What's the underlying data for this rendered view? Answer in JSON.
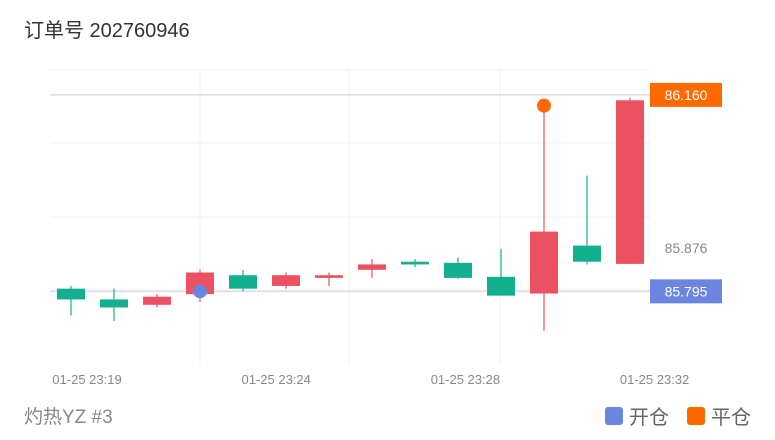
{
  "header": {
    "title": "订单号 202760946"
  },
  "footer": {
    "subtitle": "灼热YZ #3"
  },
  "legend": {
    "items": [
      {
        "label": "开仓",
        "color": "#6b85e0"
      },
      {
        "label": "平仓",
        "color": "#ff6a00"
      }
    ]
  },
  "colors": {
    "up": "#13b08f",
    "down": "#eb5160",
    "grid": "#f2f2f2",
    "ref_line": "#dddddd"
  },
  "chart_data": {
    "type": "candlestick",
    "ylim": [
      85.66,
      86.21
    ],
    "x_tick_labels": [
      {
        "index": 0,
        "label": "01-25 23:19"
      },
      {
        "index": 4.4,
        "label": "01-25 23:24"
      },
      {
        "index": 8.8,
        "label": "01-25 23:28"
      },
      {
        "index": 13.2,
        "label": "01-25 23:32"
      }
    ],
    "candles": [
      {
        "open": 85.78,
        "close": 85.8,
        "high": 85.805,
        "low": 85.75
      },
      {
        "open": 85.765,
        "close": 85.78,
        "high": 85.8,
        "low": 85.74
      },
      {
        "open": 85.785,
        "close": 85.77,
        "high": 85.79,
        "low": 85.765
      },
      {
        "open": 85.83,
        "close": 85.79,
        "high": 85.835,
        "low": 85.775
      },
      {
        "open": 85.8,
        "close": 85.825,
        "high": 85.835,
        "low": 85.795
      },
      {
        "open": 85.825,
        "close": 85.805,
        "high": 85.83,
        "low": 85.8
      },
      {
        "open": 85.825,
        "close": 85.82,
        "high": 85.83,
        "low": 85.805
      },
      {
        "open": 85.845,
        "close": 85.835,
        "high": 85.855,
        "low": 85.82
      },
      {
        "open": 85.845,
        "close": 85.85,
        "high": 85.855,
        "low": 85.84
      },
      {
        "open": 85.82,
        "close": 85.848,
        "high": 85.858,
        "low": 85.818
      },
      {
        "open": 85.787,
        "close": 85.822,
        "high": 85.874,
        "low": 85.787
      },
      {
        "open": 85.906,
        "close": 85.791,
        "high": 86.14,
        "low": 85.721
      },
      {
        "open": 85.85,
        "close": 85.88,
        "high": 86.01,
        "low": 85.845
      },
      {
        "open": 86.15,
        "close": 85.846,
        "high": 86.155,
        "low": 85.846
      }
    ],
    "markers": [
      {
        "name": "open",
        "index": 3,
        "price": 85.795,
        "color": "#6b85e0"
      },
      {
        "name": "close",
        "index": 11,
        "price": 86.14,
        "color": "#ff6a00"
      }
    ],
    "price_lines": [
      {
        "value": "86.160",
        "price": 86.16,
        "style": "badge",
        "color": "#ff6a00"
      },
      {
        "value": "85.876",
        "price": 85.876,
        "style": "text",
        "color": "#888888"
      },
      {
        "value": "85.795",
        "price": 85.795,
        "style": "badge",
        "color": "#6b85e0"
      }
    ]
  }
}
